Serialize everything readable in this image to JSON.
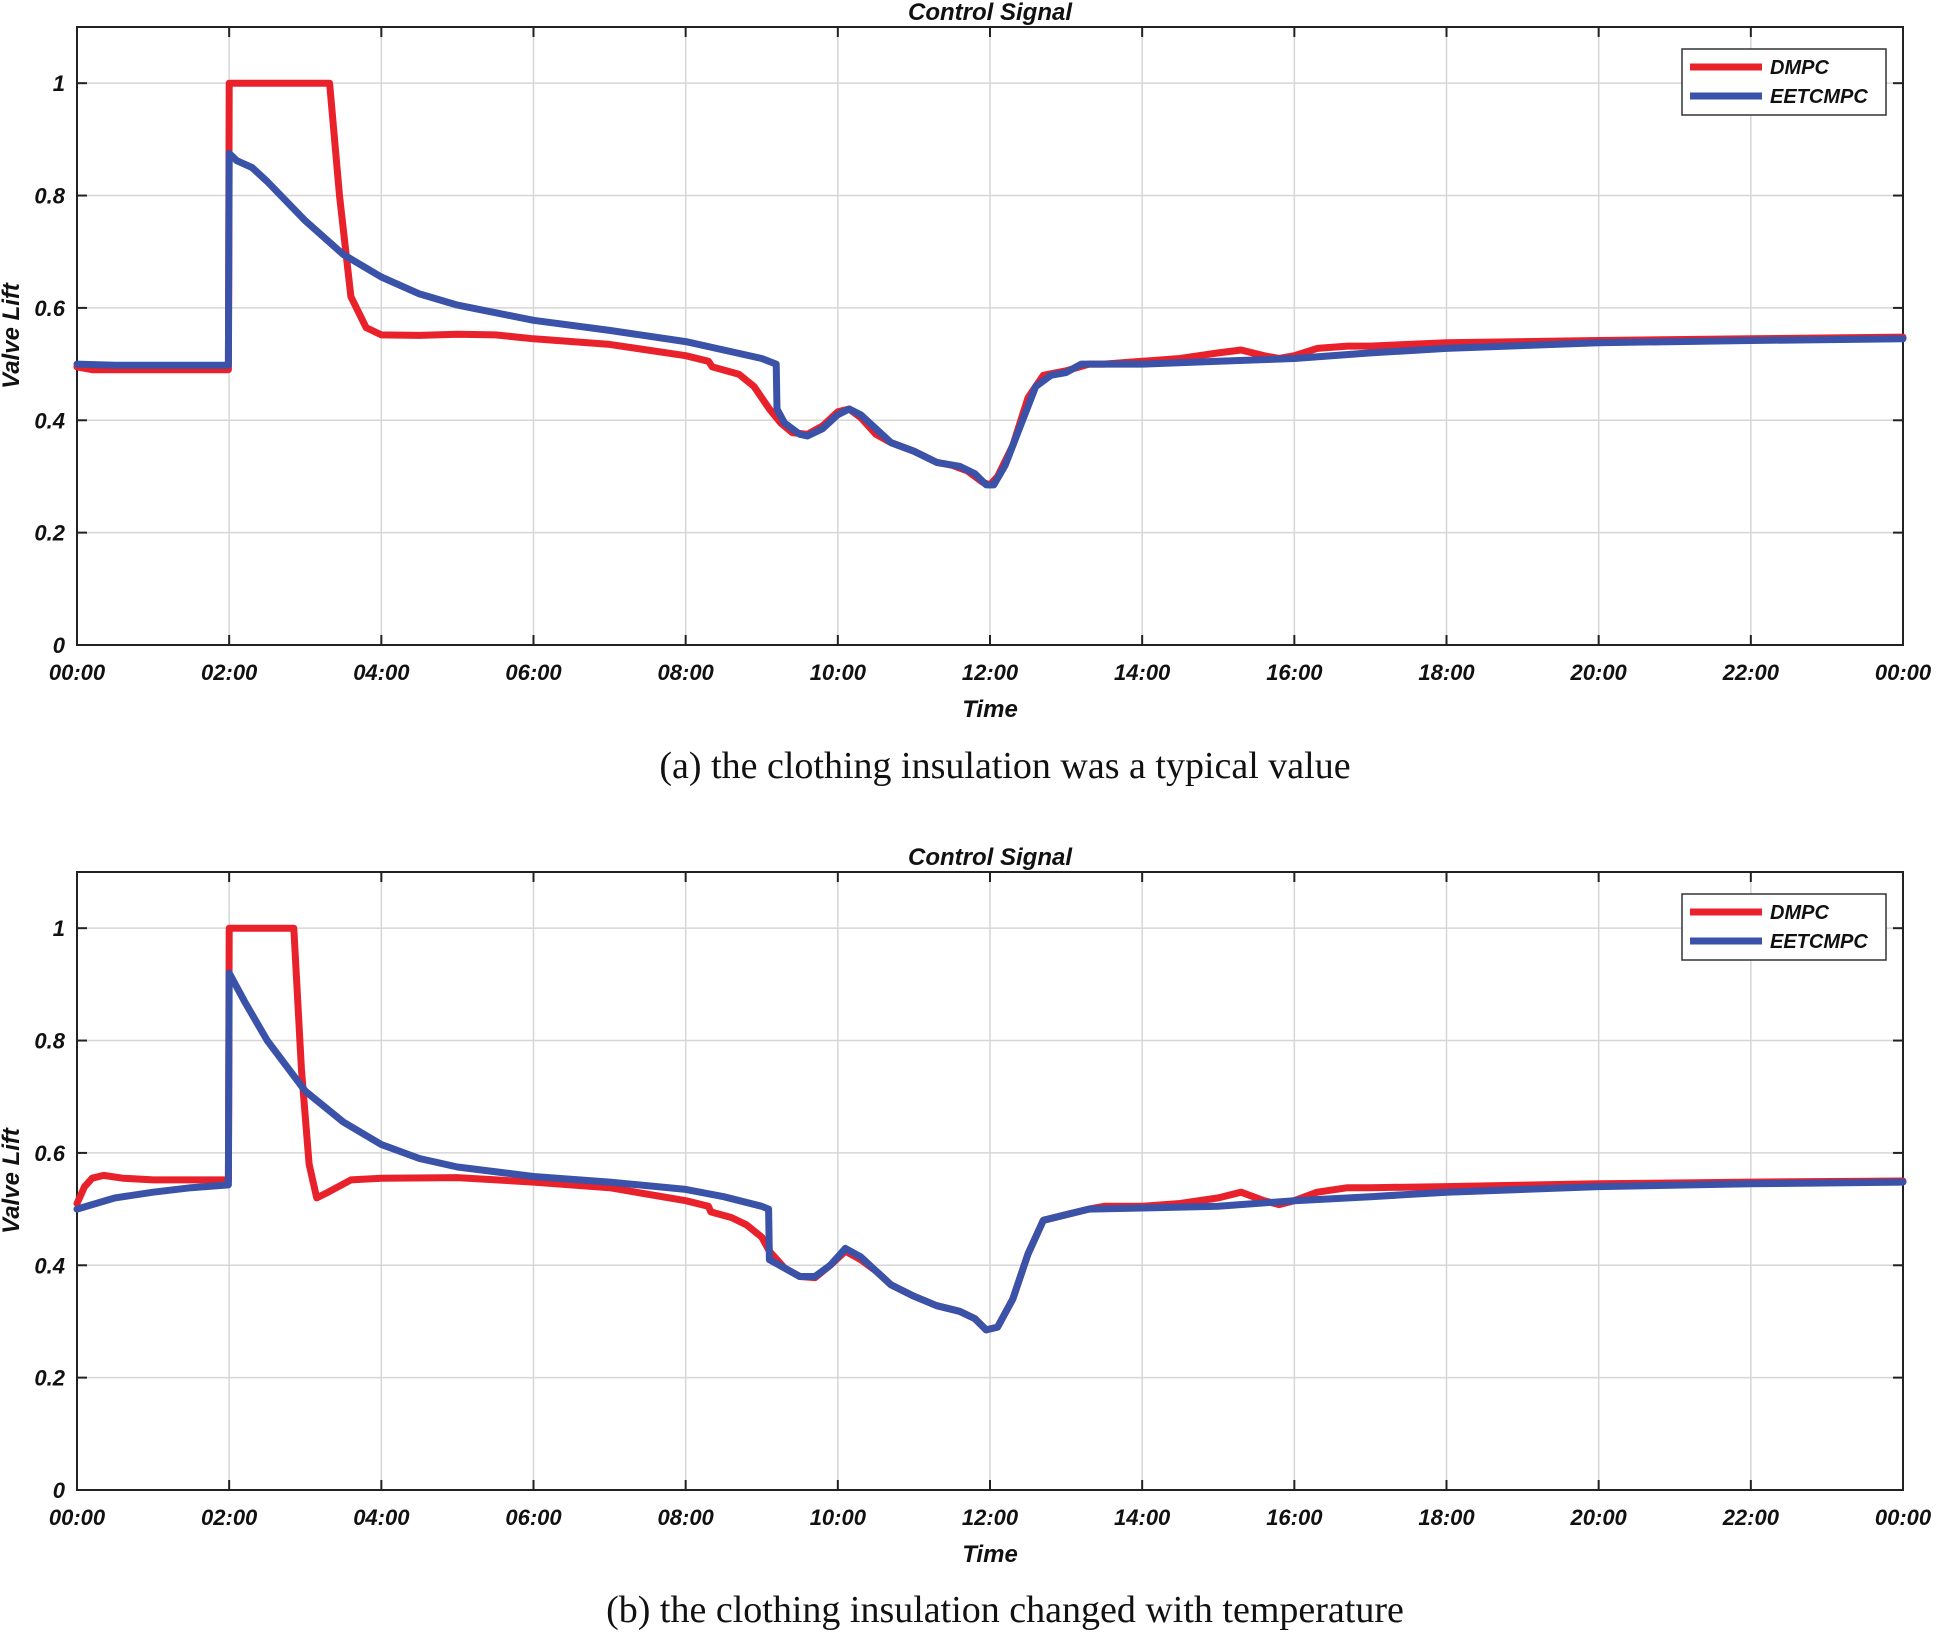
{
  "chart_data": [
    {
      "type": "line",
      "title": "Control Signal",
      "xlabel": "Time",
      "ylabel": "Valve Lift",
      "xlim": [
        0,
        24
      ],
      "ylim": [
        0,
        1.1
      ],
      "grid": true,
      "legend": "top-right",
      "x_ticks": [
        0,
        2,
        4,
        6,
        8,
        10,
        12,
        14,
        16,
        18,
        20,
        22,
        24
      ],
      "x_tick_labels": [
        "00:00",
        "02:00",
        "04:00",
        "06:00",
        "08:00",
        "10:00",
        "12:00",
        "14:00",
        "16:00",
        "18:00",
        "20:00",
        "22:00",
        "00:00"
      ],
      "y_ticks": [
        0,
        0.2,
        0.4,
        0.6,
        0.8,
        1
      ],
      "y_tick_labels": [
        "0",
        "0.2",
        "0.4",
        "0.6",
        "0.8",
        "1"
      ],
      "caption": "(a) the clothing insulation was a typical value",
      "series": [
        {
          "name": "DMPC",
          "color": "#e8212b",
          "x": [
            0,
            0.2,
            1.99,
            2.0,
            2.5,
            3.0,
            3.32,
            3.45,
            3.6,
            3.8,
            4.0,
            4.5,
            5.0,
            5.5,
            6.0,
            7.0,
            8.0,
            8.3,
            8.35,
            8.7,
            8.9,
            9.1,
            9.25,
            9.4,
            9.6,
            9.8,
            10.0,
            10.15,
            10.3,
            10.5,
            10.7,
            11.0,
            11.3,
            11.5,
            11.7,
            11.9,
            12.0,
            12.1,
            12.3,
            12.5,
            12.7,
            13.0,
            13.3,
            13.5,
            14.0,
            14.5,
            15.0,
            15.3,
            15.6,
            15.8,
            16.0,
            16.3,
            16.7,
            17.0,
            18.0,
            20.0,
            22.0,
            24.0
          ],
          "values": [
            0.495,
            0.49,
            0.49,
            1.0,
            1.0,
            1.0,
            1.0,
            0.8,
            0.62,
            0.565,
            0.552,
            0.551,
            0.553,
            0.552,
            0.545,
            0.535,
            0.515,
            0.505,
            0.495,
            0.482,
            0.46,
            0.42,
            0.395,
            0.378,
            0.375,
            0.39,
            0.415,
            0.42,
            0.405,
            0.375,
            0.36,
            0.345,
            0.325,
            0.32,
            0.31,
            0.29,
            0.285,
            0.3,
            0.355,
            0.44,
            0.48,
            0.488,
            0.5,
            0.5,
            0.505,
            0.51,
            0.52,
            0.525,
            0.515,
            0.51,
            0.515,
            0.528,
            0.532,
            0.532,
            0.538,
            0.542,
            0.545,
            0.548
          ]
        },
        {
          "name": "EETCMPC",
          "color": "#3a52a8",
          "x": [
            0,
            0.5,
            1.99,
            2.0,
            2.1,
            2.3,
            2.5,
            3.0,
            3.5,
            4.0,
            4.5,
            5.0,
            6.0,
            7.0,
            8.0,
            8.5,
            9.0,
            9.19,
            9.2,
            9.3,
            9.5,
            9.6,
            9.8,
            10.0,
            10.15,
            10.3,
            10.5,
            10.7,
            11.0,
            11.3,
            11.6,
            11.8,
            11.95,
            12.05,
            12.2,
            12.4,
            12.6,
            12.8,
            13.0,
            13.2,
            14.0,
            15.0,
            16.0,
            17.0,
            18.0,
            20.0,
            22.0,
            24.0
          ],
          "values": [
            0.5,
            0.498,
            0.498,
            0.875,
            0.862,
            0.85,
            0.825,
            0.755,
            0.695,
            0.655,
            0.625,
            0.605,
            0.578,
            0.56,
            0.54,
            0.525,
            0.51,
            0.5,
            0.42,
            0.395,
            0.375,
            0.372,
            0.385,
            0.41,
            0.42,
            0.41,
            0.385,
            0.36,
            0.345,
            0.325,
            0.318,
            0.305,
            0.285,
            0.285,
            0.32,
            0.39,
            0.46,
            0.48,
            0.485,
            0.5,
            0.5,
            0.505,
            0.51,
            0.52,
            0.528,
            0.538,
            0.542,
            0.545
          ]
        }
      ]
    },
    {
      "type": "line",
      "title": "Control Signal",
      "xlabel": "Time",
      "ylabel": "Valve Lift",
      "xlim": [
        0,
        24
      ],
      "ylim": [
        0,
        1.1
      ],
      "grid": true,
      "legend": "top-right",
      "x_ticks": [
        0,
        2,
        4,
        6,
        8,
        10,
        12,
        14,
        16,
        18,
        20,
        22,
        24
      ],
      "x_tick_labels": [
        "00:00",
        "02:00",
        "04:00",
        "06:00",
        "08:00",
        "10:00",
        "12:00",
        "14:00",
        "16:00",
        "18:00",
        "20:00",
        "22:00",
        "00:00"
      ],
      "y_ticks": [
        0,
        0.2,
        0.4,
        0.6,
        0.8,
        1
      ],
      "y_tick_labels": [
        "0",
        "0.2",
        "0.4",
        "0.6",
        "0.8",
        "1"
      ],
      "caption": "(b) the clothing insulation changed with temperature",
      "series": [
        {
          "name": "DMPC",
          "color": "#e8212b",
          "x": [
            0,
            0.1,
            0.2,
            0.35,
            0.6,
            1.0,
            1.99,
            2.0,
            2.5,
            2.85,
            2.95,
            3.05,
            3.15,
            3.3,
            3.6,
            4.0,
            5.0,
            6.0,
            7.0,
            8.0,
            8.3,
            8.33,
            8.6,
            8.8,
            9.0,
            9.1,
            9.3,
            9.5,
            9.7,
            9.9,
            10.1,
            10.3,
            10.5,
            10.7,
            11.0,
            11.3,
            11.6,
            11.8,
            11.95,
            12.1,
            12.3,
            12.5,
            12.7,
            13.0,
            13.3,
            13.5,
            14.0,
            14.5,
            15.0,
            15.3,
            15.6,
            15.8,
            16.0,
            16.3,
            16.7,
            17.0,
            18.0,
            20.0,
            22.0,
            24.0
          ],
          "values": [
            0.51,
            0.54,
            0.555,
            0.56,
            0.555,
            0.552,
            0.552,
            1.0,
            1.0,
            1.0,
            0.75,
            0.58,
            0.52,
            0.53,
            0.552,
            0.555,
            0.556,
            0.548,
            0.538,
            0.515,
            0.505,
            0.495,
            0.485,
            0.472,
            0.45,
            0.425,
            0.395,
            0.38,
            0.378,
            0.4,
            0.425,
            0.41,
            0.39,
            0.365,
            0.345,
            0.328,
            0.318,
            0.305,
            0.285,
            0.29,
            0.34,
            0.42,
            0.48,
            0.49,
            0.5,
            0.505,
            0.505,
            0.51,
            0.52,
            0.53,
            0.515,
            0.508,
            0.515,
            0.53,
            0.538,
            0.538,
            0.54,
            0.545,
            0.548,
            0.55
          ]
        },
        {
          "name": "EETCMPC",
          "color": "#3a52a8",
          "x": [
            0,
            0.5,
            1.0,
            1.5,
            1.99,
            2.0,
            2.2,
            2.5,
            3.0,
            3.5,
            4.0,
            4.5,
            5.0,
            6.0,
            7.0,
            8.0,
            8.5,
            9.0,
            9.09,
            9.1,
            9.3,
            9.5,
            9.7,
            9.9,
            10.1,
            10.3,
            10.5,
            10.7,
            11.0,
            11.3,
            11.6,
            11.8,
            11.95,
            12.1,
            12.3,
            12.5,
            12.7,
            13.0,
            13.3,
            14.0,
            15.0,
            16.0,
            17.0,
            18.0,
            20.0,
            22.0,
            24.0
          ],
          "values": [
            0.5,
            0.52,
            0.53,
            0.538,
            0.543,
            0.92,
            0.87,
            0.8,
            0.71,
            0.655,
            0.615,
            0.59,
            0.575,
            0.558,
            0.548,
            0.535,
            0.522,
            0.505,
            0.5,
            0.41,
            0.395,
            0.38,
            0.38,
            0.4,
            0.43,
            0.415,
            0.39,
            0.365,
            0.345,
            0.328,
            0.318,
            0.305,
            0.285,
            0.29,
            0.34,
            0.42,
            0.48,
            0.49,
            0.5,
            0.502,
            0.505,
            0.515,
            0.522,
            0.53,
            0.54,
            0.545,
            0.548
          ]
        }
      ]
    }
  ]
}
